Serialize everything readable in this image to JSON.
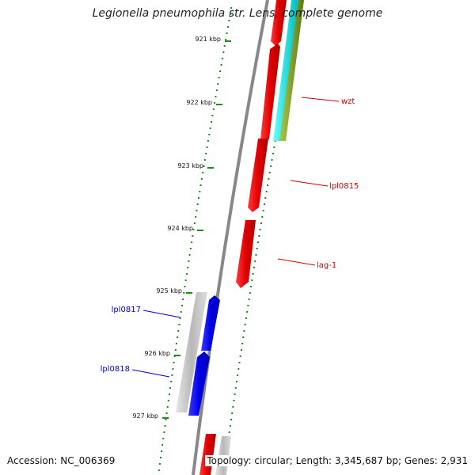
{
  "title": "Legionella pneumophila str. Lens, complete genome",
  "ruler": {
    "unit": "kbp",
    "ticks": [
      {
        "kbp": 921,
        "label": "921 kbp"
      },
      {
        "kbp": 922,
        "label": "922 kbp"
      },
      {
        "kbp": 923,
        "label": "923 kbp"
      },
      {
        "kbp": 924,
        "label": "924 kbp"
      },
      {
        "kbp": 925,
        "label": "925 kbp"
      },
      {
        "kbp": 926,
        "label": "926 kbp"
      },
      {
        "kbp": 927,
        "label": "927 kbp"
      }
    ]
  },
  "genes": [
    {
      "label": "wzt",
      "strand": "forward",
      "color": "#cc0000"
    },
    {
      "label": "lpl0815",
      "strand": "forward",
      "color": "#cc0000"
    },
    {
      "label": "lag-1",
      "strand": "forward",
      "color": "#cc0000"
    },
    {
      "label": "lpl0817",
      "strand": "reverse",
      "color": "#0000cc"
    },
    {
      "label": "lpl0818",
      "strand": "reverse",
      "color": "#0000cc"
    }
  ],
  "colors": {
    "forward_cds": "#ff0000",
    "reverse_cds": "#0000ff",
    "backbone": "#888888",
    "rna": "#00cccc",
    "other_feature": "#88aa22",
    "ruler_ticks": "#1a8a1a",
    "gc_track": "#bbbbbb"
  },
  "footer": {
    "accession": "Accession: NC_006369",
    "summary": "Topology: circular; Length: 3,345,687 bp; Genes: 2,931"
  }
}
